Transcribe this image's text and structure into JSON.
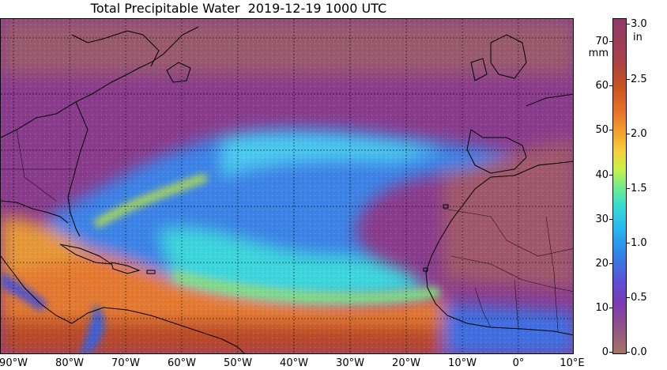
{
  "title": "Total Precipitable Water  2019-12-19 1000 UTC",
  "x_axis": {
    "ticks": [
      "90°W",
      "80°W",
      "70°W",
      "60°W",
      "50°W",
      "40°W",
      "30°W",
      "20°W",
      "10°W",
      "0°",
      "10°E"
    ]
  },
  "colorbar": {
    "mm_unit": "mm",
    "in_unit": "in",
    "mm_ticks": [
      "0",
      "10",
      "20",
      "30",
      "40",
      "50",
      "60",
      "70"
    ],
    "in_ticks": [
      "0.0",
      "0.5",
      "1.0",
      "1.5",
      "2.0",
      "2.5",
      "3.0"
    ],
    "mm_range": [
      0,
      76.2
    ],
    "in_range": [
      0,
      3.0
    ]
  },
  "map": {
    "lon_range": [
      -92,
      10
    ],
    "lat_range": [
      -5,
      55
    ],
    "gridline_style": "dotted",
    "colors": {
      "dry": "#a47462",
      "low": "#8a3c8c",
      "moderate": "#3a7ee8",
      "mid": "#38d0e0",
      "high": "#e07a30",
      "very_high": "#b2482a"
    }
  }
}
